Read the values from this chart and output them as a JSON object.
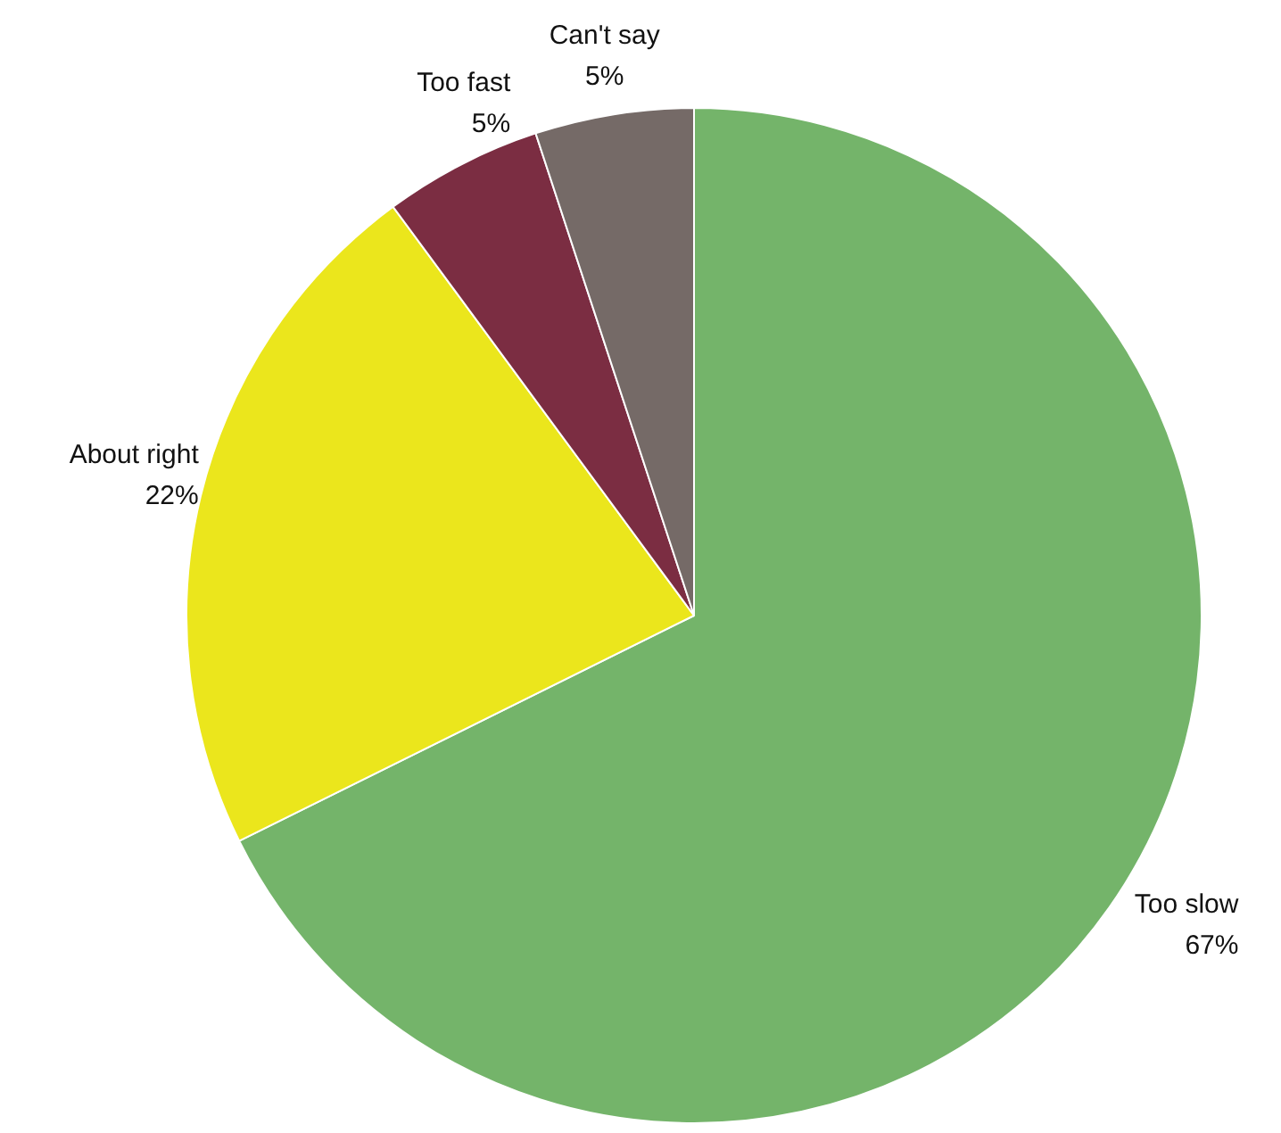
{
  "chart_data": {
    "type": "pie",
    "categories": [
      "Too slow",
      "About right",
      "Too fast",
      "Can't say"
    ],
    "values": [
      67,
      22,
      5,
      5
    ],
    "colors": [
      "#74b46a",
      "#ebe61c",
      "#7b2d42",
      "#756a67"
    ],
    "value_labels": [
      "67%",
      "22%",
      "5%",
      "5%"
    ],
    "legend": false
  }
}
